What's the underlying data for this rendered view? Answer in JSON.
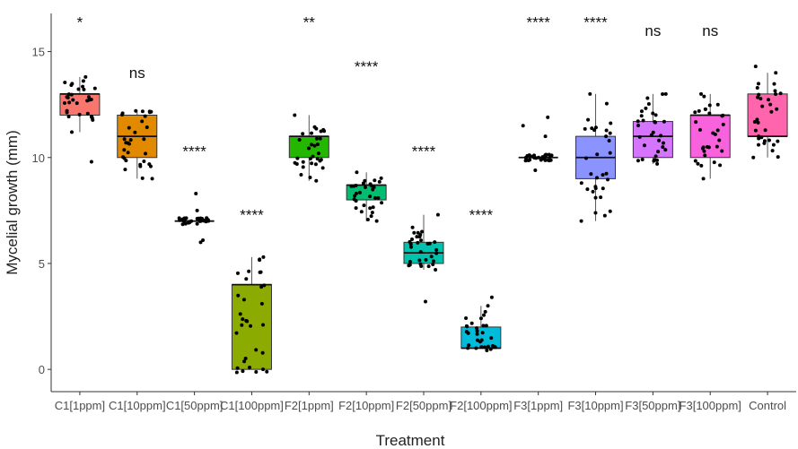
{
  "chart_data": {
    "type": "boxplot",
    "title": "",
    "xlabel": "Treatment",
    "ylabel": "Mycelial growth (mm)",
    "ylim": [
      -1.05,
      16.8
    ],
    "yticks": [
      0,
      5,
      10,
      15
    ],
    "grid": false,
    "legend": "none",
    "categories": [
      "C1[1ppm]",
      "C1[10ppm]",
      "C1[50ppm]",
      "C1[100ppm]",
      "F2[1ppm]",
      "F2[10ppm]",
      "F2[50ppm]",
      "F2[100ppm]",
      "F3[1ppm]",
      "F3[10ppm]",
      "F3[50ppm]",
      "F3[100ppm]",
      "Control"
    ],
    "colors": [
      "#F8766D",
      "#E18A00",
      "#BE9C00",
      "#8CAB00",
      "#24B700",
      "#00BE70",
      "#00C1AB",
      "#00BBDA",
      "#00ACFC",
      "#8B93FF",
      "#D575FE",
      "#F962DD",
      "#FF65AC"
    ],
    "boxes": [
      {
        "min": 11.2,
        "q1": 12,
        "median": 13,
        "q3": 13,
        "max": 13.8,
        "outliers": [
          9.8
        ]
      },
      {
        "min": 9.0,
        "q1": 10,
        "median": 11,
        "q3": 12,
        "max": 12.2,
        "outliers": []
      },
      {
        "min": 7,
        "q1": 7,
        "median": 7,
        "q3": 7,
        "max": 7,
        "outliers": [
          8.3,
          7.5,
          6.1,
          6.0
        ]
      },
      {
        "min": 0,
        "q1": 0,
        "median": 4,
        "q3": 4,
        "max": 5.3,
        "outliers": []
      },
      {
        "min": 8.9,
        "q1": 10,
        "median": 11,
        "q3": 11,
        "max": 12,
        "outliers": []
      },
      {
        "min": 7.0,
        "q1": 8,
        "median": 8.7,
        "q3": 8.7,
        "max": 9.3,
        "outliers": []
      },
      {
        "min": 4.7,
        "q1": 5,
        "median": 5.5,
        "q3": 6,
        "max": 7.3,
        "outliers": [
          3.2
        ]
      },
      {
        "min": 1,
        "q1": 1,
        "median": 1,
        "q3": 2,
        "max": 3.0,
        "outliers": [
          3.4
        ]
      },
      {
        "min": 10,
        "q1": 10,
        "median": 10,
        "q3": 10,
        "max": 10,
        "outliers": [
          11.9,
          11.5,
          11.0,
          9.4
        ]
      },
      {
        "min": 7.0,
        "q1": 9,
        "median": 10,
        "q3": 11,
        "max": 13,
        "outliers": []
      },
      {
        "min": 9.7,
        "q1": 10,
        "median": 11,
        "q3": 11.7,
        "max": 13,
        "outliers": []
      },
      {
        "min": 9.0,
        "q1": 10,
        "median": 12,
        "q3": 12,
        "max": 13,
        "outliers": []
      },
      {
        "min": 10,
        "q1": 11,
        "median": 11,
        "q3": 13,
        "max": 14,
        "outliers": [
          14.3
        ]
      }
    ],
    "annotations": [
      {
        "label": "*",
        "y": 16.4
      },
      {
        "label": "ns",
        "y": 14.0
      },
      {
        "label": "****",
        "y": 10.3
      },
      {
        "label": "****",
        "y": 7.3
      },
      {
        "label": "**",
        "y": 16.4
      },
      {
        "label": "****",
        "y": 14.3
      },
      {
        "label": "****",
        "y": 10.3
      },
      {
        "label": "****",
        "y": 7.3
      },
      {
        "label": "****",
        "y": 16.4
      },
      {
        "label": "****",
        "y": 16.4
      },
      {
        "label": "ns",
        "y": 16.0
      },
      {
        "label": "ns",
        "y": 16.0
      },
      {
        "label": "",
        "y": 16.0
      }
    ]
  }
}
